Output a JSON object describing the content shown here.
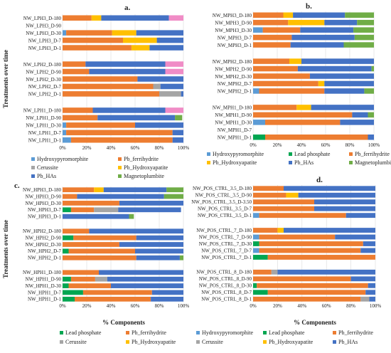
{
  "colors": {
    "Hydroxypyromorphite": "#5b9bd5",
    "Lead phosphate": "#00a651",
    "Pb_ferrihydrite": "#ed7d31",
    "Cerussite": "#a5a5a5",
    "Pb_Hydroxyapatite": "#ffc000",
    "Pb_HAs": "#4472c4",
    "Magnetoplumbite": "#70ad47",
    "Pink": "#f08cc6"
  },
  "axis_titles": {
    "y": "Treatments over time",
    "x": "% Components"
  },
  "chart_data": [
    {
      "id": "a",
      "label": "a.",
      "type": "bar",
      "stacked": true,
      "orientation": "horizontal",
      "xlim": [
        0,
        100
      ],
      "xticks": [
        "0%",
        "20%",
        "40%",
        "60%",
        "80%",
        "100%"
      ],
      "categories": [
        "NW_LPH3_D-180",
        "NW_LPH3_D-90",
        "NW_LPH3_D-30",
        "NW_LPH3_D-7",
        "NW_LPH3_D-1",
        "NW_LPH2_D-180",
        "NW_LPH2_D-90",
        "NW_LPH2_D-30",
        "NW_LPH2_D-7",
        "NW_LPH2_D-1",
        "NW_LPH1_D-180",
        "NW_LPH1_D-90",
        "NW_LPH1_D-30",
        "NW_LPH1_D-7",
        "NW_LPH1_D-1"
      ],
      "groups": [
        5,
        5,
        5
      ],
      "series": [
        {
          "name": "Hydroxypyromorphite",
          "color": "#5b9bd5",
          "values": [
            0,
            0,
            3,
            0,
            0,
            0,
            0,
            0,
            0,
            0,
            0,
            0,
            3,
            3,
            7
          ]
        },
        {
          "name": "Pb_ferrihydrite",
          "color": "#ed7d31",
          "values": [
            24,
            0,
            38,
            50,
            57,
            19,
            22,
            62,
            75,
            80,
            25,
            29,
            57,
            88,
            84
          ]
        },
        {
          "name": "Cerussite",
          "color": "#a5a5a5",
          "values": [
            0,
            0,
            0,
            0,
            0,
            0,
            0,
            0,
            6,
            18,
            0,
            0,
            0,
            0,
            0
          ]
        },
        {
          "name": "Pb_Hydroxyapatite",
          "color": "#ffc000",
          "values": [
            8,
            0,
            20,
            28,
            15,
            0,
            0,
            0,
            0,
            0,
            0,
            0,
            0,
            0,
            0
          ]
        },
        {
          "name": "Pb_HAs",
          "color": "#4472c4",
          "values": [
            56,
            0,
            39,
            22,
            28,
            66,
            63,
            38,
            19,
            2,
            60,
            64,
            40,
            9,
            9
          ]
        },
        {
          "name": "Magnetoplumbite",
          "color": "#70ad47",
          "values": [
            0,
            0,
            0,
            0,
            0,
            0,
            0,
            0,
            0,
            0,
            0,
            6,
            0,
            0,
            0
          ]
        },
        {
          "name": "",
          "color": "#f08cc6",
          "values": [
            12,
            0,
            0,
            0,
            0,
            15,
            15,
            0,
            0,
            0,
            15,
            0,
            0,
            0,
            0
          ]
        }
      ],
      "legend": [
        "Hydroxypyromorphite",
        "Pb_ferrihydrite",
        "Cerussite",
        "Pb_Hydroxyapatite",
        "Pb_HAs",
        "Magnetoplumbite"
      ]
    },
    {
      "id": "b",
      "label": "b.",
      "type": "bar",
      "stacked": true,
      "orientation": "horizontal",
      "xlim": [
        0,
        100
      ],
      "xticks": [
        "0%",
        "20%",
        "40%",
        "60%",
        "80%",
        "100%"
      ],
      "categories": [
        "NW_MPH3_D-180",
        "NW_MPH3_D-90",
        "NW_MPH3_D-30",
        "NW_MPH3_D-7",
        "NW_MPH3_D-1",
        "NW_MPH2_D-180",
        "NW_MPH2_D-90",
        "NW_MPH2_D-30",
        "NW_MPH2_D-7",
        "NW_MPH2_D-1",
        "NW_MPH1_D-180",
        "NW_MPH1_D-90",
        "NW_MPH1_D-30",
        "NW_MPH1_D-7",
        "NW_MPH1_D-1"
      ],
      "groups": [
        5,
        5,
        5
      ],
      "series": [
        {
          "name": "Hydroxypyromorphite",
          "color": "#5b9bd5",
          "values": [
            0,
            0,
            8,
            0,
            0,
            0,
            0,
            0,
            0,
            5,
            0,
            0,
            10,
            0,
            0
          ]
        },
        {
          "name": "Lead phosphate",
          "color": "#00a651",
          "values": [
            0,
            0,
            0,
            0,
            0,
            0,
            0,
            0,
            0,
            0,
            0,
            0,
            0,
            0,
            10
          ]
        },
        {
          "name": "Pb_ferrihydrite",
          "color": "#ed7d31",
          "values": [
            25,
            29,
            31,
            32,
            31,
            30,
            37,
            47,
            54,
            54,
            36,
            82,
            62,
            0,
            85
          ]
        },
        {
          "name": "Pb_Hydroxyapatite",
          "color": "#ffc000",
          "values": [
            8,
            30,
            0,
            0,
            0,
            10,
            0,
            0,
            5,
            0,
            12,
            0,
            0,
            0,
            0
          ]
        },
        {
          "name": "Pb_HAs",
          "color": "#4472c4",
          "values": [
            43,
            27,
            44,
            52,
            44,
            60,
            61,
            53,
            41,
            33,
            52,
            13,
            28,
            0,
            5
          ]
        },
        {
          "name": "Magnetoplumbite",
          "color": "#70ad47",
          "values": [
            24,
            14,
            17,
            16,
            25,
            0,
            2,
            0,
            0,
            8,
            0,
            5,
            0,
            0,
            0
          ]
        }
      ],
      "legend": [
        "Hydroxypyromorphite",
        "Lead phosphate",
        "Pb_ferrihydrite",
        "Pb_Hydroxyapatite",
        "Pb_HAs",
        "Magnetoplumbite"
      ]
    },
    {
      "id": "c",
      "label": "c.",
      "type": "bar",
      "stacked": true,
      "orientation": "horizontal",
      "xlim": [
        0,
        100
      ],
      "xticks": [
        "0%",
        "20%",
        "40%",
        "60%",
        "80%",
        "100%"
      ],
      "categories": [
        "NW_HPH3_D-180",
        "NW_HPH3_D-90",
        "NW_HPH3_D-30",
        "NW_HPH3_D-7",
        "NW_HPH3_D-1",
        "NW_HPH2_D-180",
        "NW_HPH2_D-90",
        "NW_HPH2_D-30",
        "NW_HPH2_D-7",
        "NW_HPH2_D-1",
        "NW_HPH1_D-180",
        "NW_HPH1_D-90",
        "NW_HPH1_D-30",
        "NW_HPH1_D-7",
        "NW_HPH1_D-1"
      ],
      "groups": [
        5,
        5,
        5
      ],
      "series": [
        {
          "name": "Lead phosphate",
          "color": "#00a651",
          "values": [
            0,
            0,
            0,
            7,
            0,
            0,
            9,
            0,
            5,
            0,
            0,
            7,
            5,
            17,
            10
          ]
        },
        {
          "name": "Pb_ferrihydrite",
          "color": "#ed7d31",
          "values": [
            26,
            12,
            47,
            19,
            0,
            22,
            52,
            47,
            55,
            61,
            30,
            20,
            35,
            57,
            63
          ]
        },
        {
          "name": "Cerussite",
          "color": "#a5a5a5",
          "values": [
            0,
            0,
            0,
            20,
            0,
            0,
            0,
            0,
            0,
            0,
            0,
            10,
            0,
            0,
            0
          ]
        },
        {
          "name": "Pb_Hydroxyapatite",
          "color": "#ffc000",
          "values": [
            8,
            0,
            0,
            0,
            0,
            0,
            0,
            0,
            0,
            0,
            0,
            0,
            0,
            0,
            0
          ]
        },
        {
          "name": "Pb_HAs",
          "color": "#4472c4",
          "values": [
            52,
            72,
            53,
            52,
            55,
            78,
            39,
            53,
            40,
            36,
            70,
            63,
            60,
            26,
            27
          ]
        },
        {
          "name": "Magnetoplumbite",
          "color": "#70ad47",
          "values": [
            14,
            16,
            0,
            0,
            4,
            0,
            0,
            0,
            0,
            3,
            0,
            0,
            0,
            0,
            0
          ]
        }
      ],
      "legend": [
        "Lead phosphate",
        "Pb_ferrihydrite",
        "Cerussite",
        "Pb_Hydroxyapatite"
      ]
    },
    {
      "id": "d",
      "label": "d.",
      "type": "bar",
      "stacked": true,
      "orientation": "horizontal",
      "xlim": [
        0,
        100
      ],
      "xticks": [
        "0%",
        "20%",
        "40%",
        "60%",
        "80%",
        "100%"
      ],
      "categories": [
        "NW_POS_CTRL_3.5_D-180",
        "NW_POS_CTRL_3.5_D-90",
        "NW_POS_CTRL_3.5_D-3.50",
        "NW_POS_CTRL_3.5_D-7",
        "NW_POS_CTRL_3.5_D-1",
        "NW_POS_CTRL_7_D-180",
        "NW_POS_CTRL_7_D-90",
        "NW_POS_CTRL_7_D-30",
        "NW_POS_CTRL_7_D-7",
        "NW_POS_CTRL_7_D-1",
        "NW_POS_CTRL_8_D-180",
        "NW_POS_CTRL_8_D-90",
        "NW_POS_CTRL_8_D-30",
        "NW_POS_CTRL_8_D-7",
        "NW_POS_CTRL_8_D-1"
      ],
      "groups": [
        5,
        5,
        5
      ],
      "series": [
        {
          "name": "Hydroxypyromorphite",
          "color": "#5b9bd5",
          "values": [
            0,
            0,
            0,
            0,
            5,
            0,
            5,
            0,
            5,
            0,
            0,
            0,
            0,
            0,
            0
          ]
        },
        {
          "name": "Lead phosphate",
          "color": "#00a651",
          "values": [
            0,
            0,
            0,
            0,
            0,
            0,
            0,
            5,
            0,
            12,
            0,
            0,
            3,
            12,
            0
          ]
        },
        {
          "name": "Pb_ferrihydrite",
          "color": "#ed7d31",
          "values": [
            25,
            27,
            50,
            50,
            71,
            20,
            62,
            85,
            83,
            88,
            15,
            80,
            91,
            80,
            88
          ]
        },
        {
          "name": "Cerussite",
          "color": "#a5a5a5",
          "values": [
            0,
            0,
            0,
            0,
            0,
            0,
            0,
            0,
            0,
            0,
            5,
            0,
            0,
            0,
            7
          ]
        },
        {
          "name": "Pb_Hydroxyapatite",
          "color": "#ffc000",
          "values": [
            0,
            10,
            0,
            0,
            0,
            5,
            0,
            0,
            0,
            0,
            0,
            0,
            0,
            0,
            0
          ]
        },
        {
          "name": "Pb_HAs",
          "color": "#4472c4",
          "values": [
            75,
            63,
            50,
            50,
            24,
            75,
            33,
            10,
            12,
            0,
            80,
            20,
            6,
            8,
            5
          ]
        }
      ],
      "legend": [
        "Hydroxypyromorphite",
        "Lead phosphate",
        "Pb_ferrihydrite",
        "Cerussite",
        "Pb_Hydroxyapatite",
        "Pb_HAs"
      ]
    }
  ]
}
